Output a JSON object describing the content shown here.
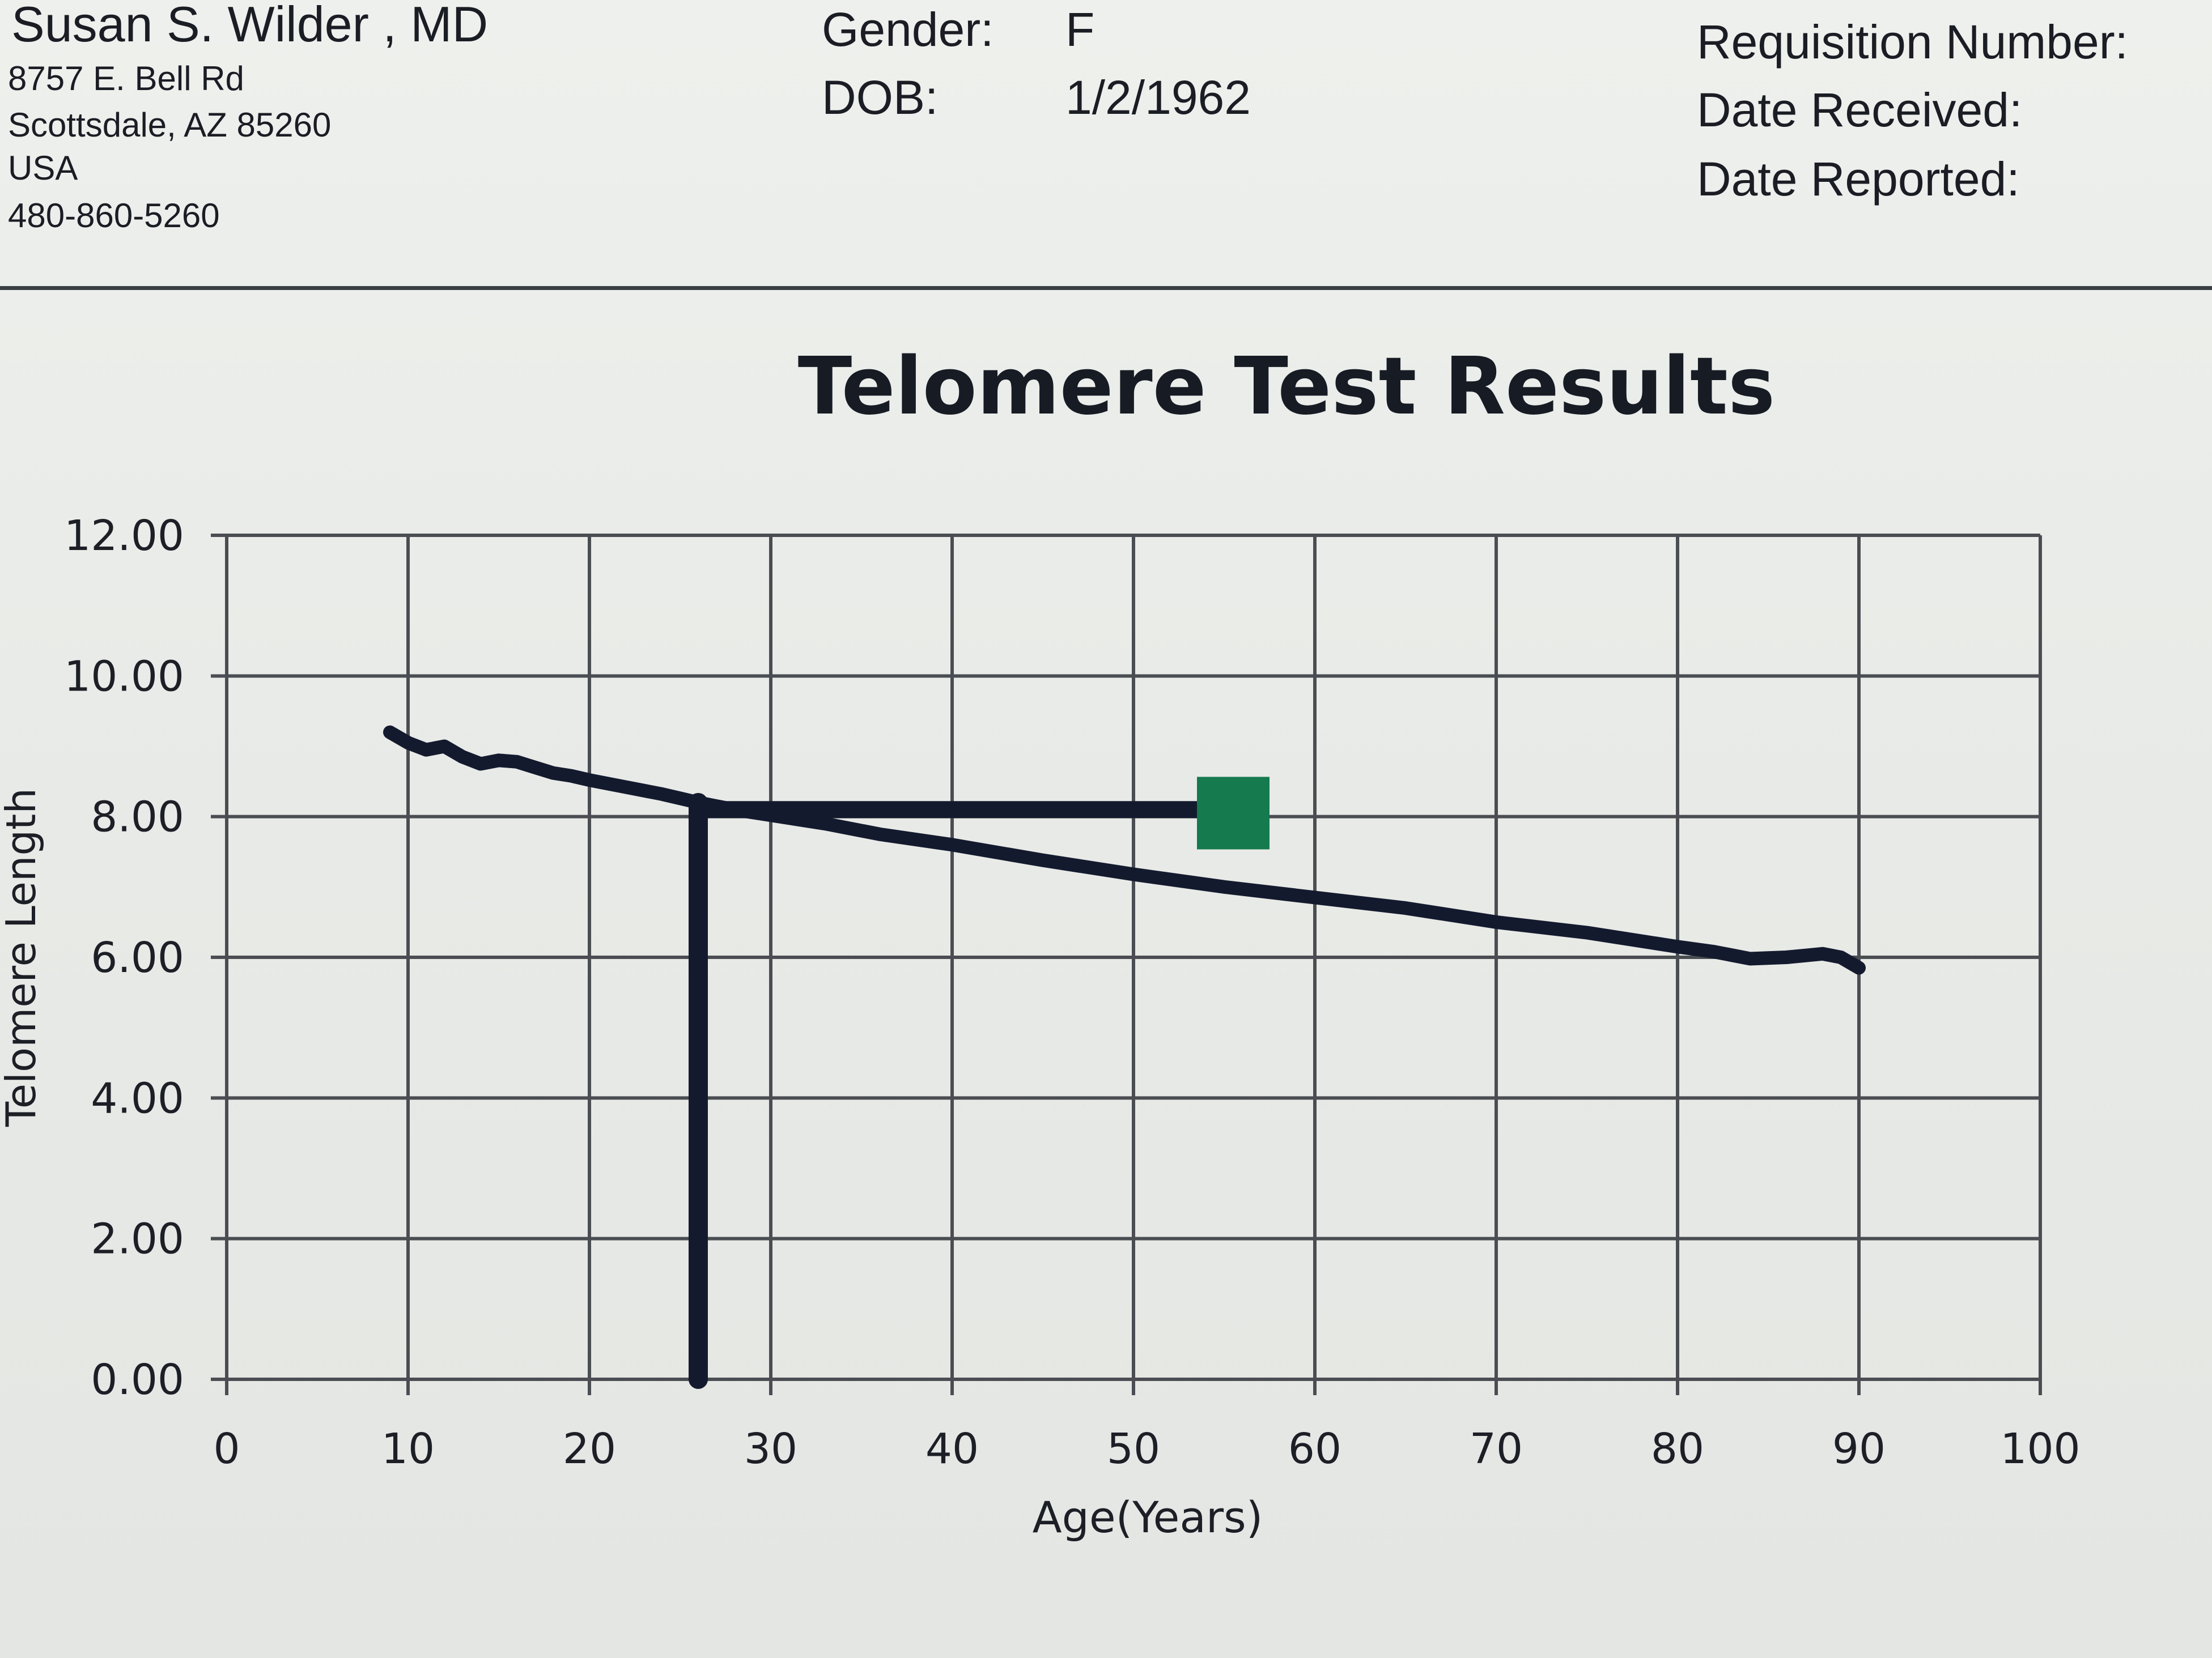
{
  "header": {
    "physician_name": "Susan S. Wilder , MD",
    "address_street": "8757 E. Bell Rd",
    "address_city": "Scottsdale, AZ 85260",
    "address_country": "USA",
    "phone": "480-860-5260",
    "gender_label": "Gender:",
    "gender_value": "F",
    "dob_label": "DOB:",
    "dob_value": "1/2/1962",
    "requisition_label": "Requisition Number:",
    "date_received_label": "Date Received:",
    "date_reported_label": "Date Reported:"
  },
  "chart_data": {
    "type": "line",
    "title": "Telomere Test Results",
    "xlabel": "Age(Years)",
    "ylabel": "Telomere Length",
    "xlim": [
      0,
      100
    ],
    "ylim": [
      0,
      12
    ],
    "x_ticks": [
      "0",
      "10",
      "20",
      "30",
      "40",
      "50",
      "60",
      "70",
      "80",
      "90",
      "100"
    ],
    "y_ticks": [
      "0.00",
      "2.00",
      "4.00",
      "6.00",
      "8.00",
      "10.00",
      "12.00"
    ],
    "grid": true,
    "series": [
      {
        "x": [
          9,
          10,
          11,
          12,
          13,
          14,
          15,
          16,
          17,
          18,
          19,
          20,
          22,
          24,
          26,
          28,
          30,
          33,
          36,
          40,
          45,
          50,
          55,
          60,
          65,
          70,
          75,
          80,
          82,
          84,
          86,
          88,
          89,
          90
        ],
        "y": [
          9.2,
          9.05,
          8.95,
          9.0,
          8.85,
          8.75,
          8.8,
          8.78,
          8.7,
          8.62,
          8.58,
          8.52,
          8.42,
          8.32,
          8.2,
          8.1,
          8.02,
          7.9,
          7.75,
          7.6,
          7.38,
          7.18,
          7.0,
          6.85,
          6.7,
          6.5,
          6.35,
          6.15,
          6.08,
          5.98,
          6.0,
          6.05,
          6.0,
          5.85
        ],
        "color": "#141a2e"
      }
    ],
    "annotations": {
      "vertical_marker": {
        "x": 26,
        "y_from": 0,
        "y_to": 8.2
      },
      "horizontal_marker": {
        "y": 8.1,
        "x_from": 26,
        "x_to": 54
      },
      "patient_point": {
        "x": 55.5,
        "y": 8.05,
        "color": "#157a4e"
      }
    },
    "colors": {
      "line": "#141a2e",
      "grid": "#4a4d52",
      "marker": "#157a4e"
    }
  }
}
